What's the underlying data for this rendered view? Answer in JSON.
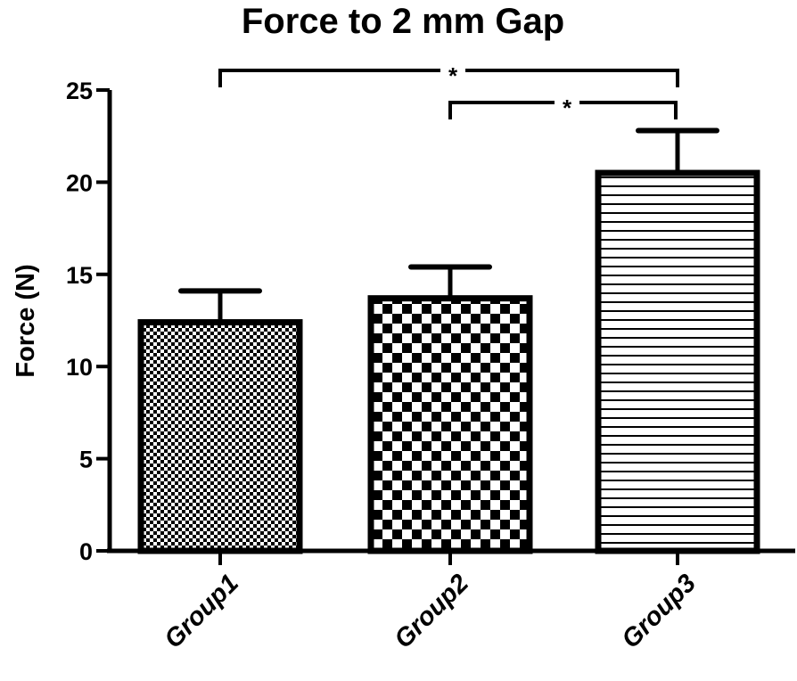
{
  "chart_data": {
    "type": "bar",
    "title": "Force to 2 mm Gap",
    "xlabel": "",
    "ylabel": "Force (N)",
    "ylim": [
      0,
      25
    ],
    "yticks": [
      0,
      5,
      10,
      15,
      20,
      25
    ],
    "grid": false,
    "legend": null,
    "categories": [
      "Group1",
      "Group2",
      "Group3"
    ],
    "values": [
      12.4,
      13.7,
      20.5
    ],
    "error_upper": [
      14.1,
      15.4,
      22.8
    ],
    "error_bars": [
      1.7,
      1.7,
      2.3
    ],
    "patterns": [
      "fine-checker",
      "coarse-checker",
      "horizontal-lines"
    ],
    "significance": [
      {
        "from": "Group1",
        "to": "Group3",
        "label": "*"
      },
      {
        "from": "Group2",
        "to": "Group3",
        "label": "*"
      }
    ]
  },
  "colors": {
    "ink": "#000000",
    "background": "#ffffff"
  }
}
